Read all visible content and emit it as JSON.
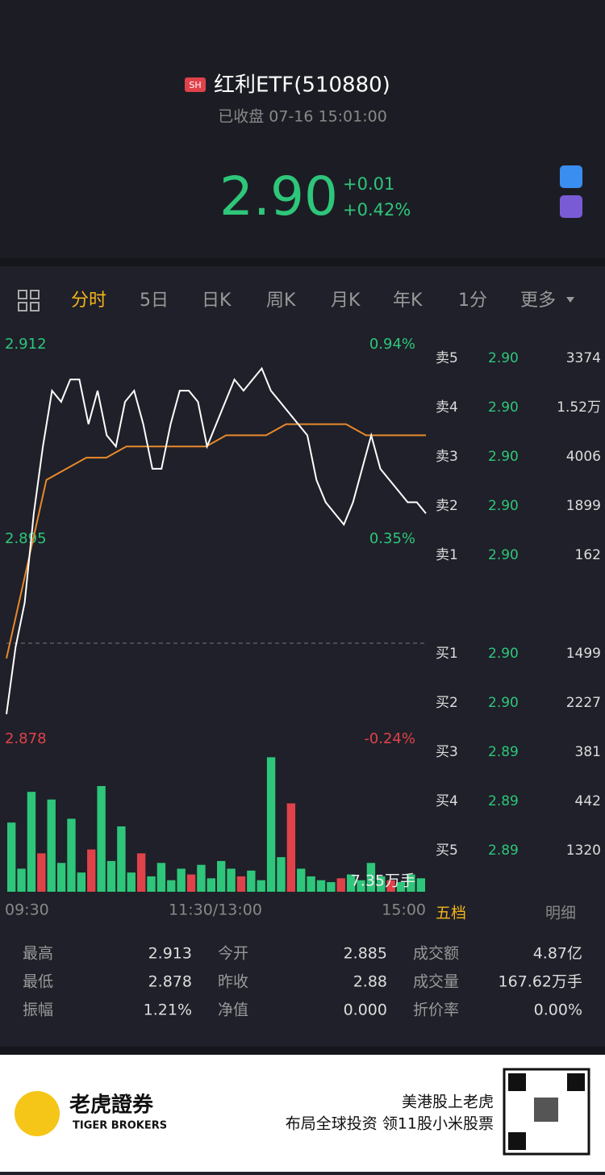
{
  "header": {
    "badge": "SH",
    "title": "红利ETF(510880)",
    "status": "已收盘 07-16 15:01:00",
    "price": "2.90",
    "change": "+0.01",
    "change_pct": "+0.42%"
  },
  "tabs": [
    "分时",
    "5日",
    "日K",
    "周K",
    "月K",
    "年K",
    "1分",
    "更多"
  ],
  "intraday": {
    "yticks": [
      2.912,
      2.895,
      2.878
    ],
    "pct_labels": [
      "0.94%",
      "0.35%",
      "-0.24%"
    ],
    "x_labels": [
      "09:30",
      "11:30/13:00",
      "15:00"
    ],
    "volume_label": "7.35万手",
    "volume_max": 7.35,
    "price": [
      2.878,
      2.884,
      2.888,
      2.896,
      2.902,
      2.907,
      2.906,
      2.908,
      2.908,
      2.904,
      2.907,
      2.903,
      2.902,
      2.906,
      2.907,
      2.904,
      2.9,
      2.9,
      2.904,
      2.907,
      2.907,
      2.906,
      2.902,
      2.904,
      2.906,
      2.908,
      2.907,
      2.908,
      2.909,
      2.907,
      2.906,
      2.905,
      2.904,
      2.903,
      2.899,
      2.897,
      2.896,
      2.895,
      2.897,
      2.9,
      2.903,
      2.9,
      2.899,
      2.898,
      2.897,
      2.897,
      2.896
    ],
    "avg": [
      2.883,
      2.891,
      2.899,
      2.9,
      2.901,
      2.901,
      2.902,
      2.902,
      2.902,
      2.902,
      2.902,
      2.903,
      2.903,
      2.903,
      2.904,
      2.904,
      2.904,
      2.904,
      2.903,
      2.903,
      2.903,
      2.903
    ],
    "volume": [
      3.6,
      1.2,
      5.2,
      2.0,
      4.8,
      1.5,
      3.8,
      1.0,
      2.2,
      5.5,
      1.6,
      3.4,
      1.0,
      2.0,
      0.8,
      1.5,
      0.6,
      1.2,
      0.9,
      1.4,
      0.7,
      1.6,
      1.2,
      0.8,
      1.1,
      0.6,
      7.0,
      1.8,
      4.6,
      1.2,
      0.8,
      0.6,
      0.5,
      0.7,
      0.9,
      0.6,
      1.5,
      0.8,
      0.6,
      0.5,
      0.9,
      0.7
    ]
  },
  "order_book": {
    "asks": [
      [
        "卖5",
        "2.90",
        "3374"
      ],
      [
        "卖4",
        "2.90",
        "1.52万"
      ],
      [
        "卖3",
        "2.90",
        "4006"
      ],
      [
        "卖2",
        "2.90",
        "1899"
      ],
      [
        "卖1",
        "2.90",
        "162"
      ]
    ],
    "bids": [
      [
        "买1",
        "2.90",
        "1499"
      ],
      [
        "买2",
        "2.90",
        "2227"
      ],
      [
        "买3",
        "2.89",
        "381"
      ],
      [
        "买4",
        "2.89",
        "442"
      ],
      [
        "买5",
        "2.89",
        "1320"
      ]
    ],
    "tabs": [
      "五档",
      "明细"
    ]
  },
  "stats": [
    [
      "最高",
      "2.913",
      "今开",
      "2.885",
      "成交额",
      "4.87亿"
    ],
    [
      "最低",
      "2.878",
      "昨收",
      "2.88",
      "成交量",
      "167.62万手"
    ],
    [
      "振幅",
      "1.21%",
      "净值",
      "0.000",
      "折价率",
      "0.00%"
    ]
  ],
  "footer": {
    "brand": "老虎證券",
    "brand_en": "TIGER BROKERS",
    "slogan": "美港股上老虎",
    "promo": "布局全球投资 领11股小米股票"
  }
}
